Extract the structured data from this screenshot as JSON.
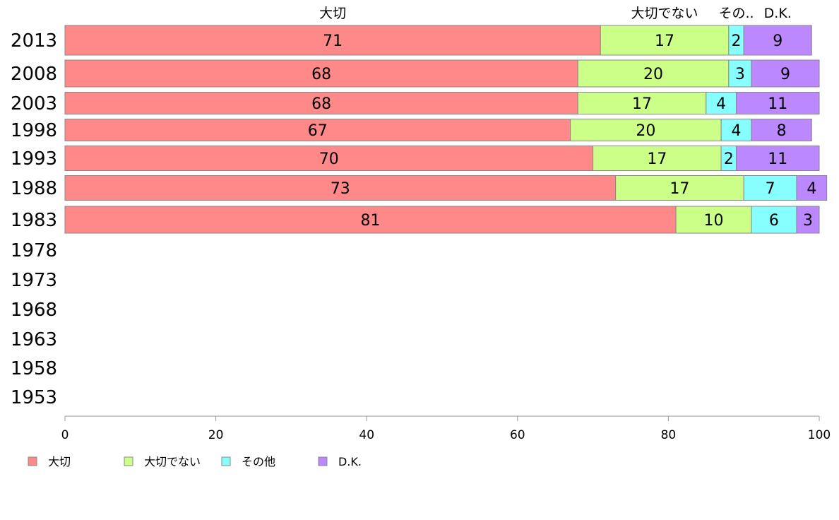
{
  "chart_data": {
    "type": "bar",
    "orientation": "horizontal",
    "stacked": true,
    "categories": [
      "2013",
      "2008",
      "2003",
      "1998",
      "1993",
      "1988",
      "1983",
      "1978",
      "1973",
      "1968",
      "1963",
      "1958",
      "1953"
    ],
    "series": [
      {
        "name": "大切",
        "color": "#ff8888",
        "values": [
          71,
          68,
          68,
          67,
          70,
          73,
          81,
          null,
          null,
          null,
          null,
          null,
          null
        ]
      },
      {
        "name": "大切でない",
        "color": "#ccff88",
        "values": [
          17,
          20,
          17,
          20,
          17,
          17,
          10,
          null,
          null,
          null,
          null,
          null,
          null
        ]
      },
      {
        "name": "その他",
        "color": "#88ffff",
        "values": [
          2,
          3,
          4,
          4,
          2,
          7,
          6,
          null,
          null,
          null,
          null,
          null,
          null
        ]
      },
      {
        "name": "D.K.",
        "color": "#bb88ff",
        "values": [
          9,
          9,
          11,
          8,
          11,
          4,
          3,
          null,
          null,
          null,
          null,
          null,
          null
        ]
      }
    ],
    "top_labels": [
      "大切",
      "大切でない",
      "その..",
      "D.K."
    ],
    "xlim": [
      0,
      100
    ],
    "xticks": [
      "0",
      "20",
      "40",
      "60",
      "80",
      "100"
    ],
    "grid": false,
    "legend_position": "bottom-left"
  }
}
